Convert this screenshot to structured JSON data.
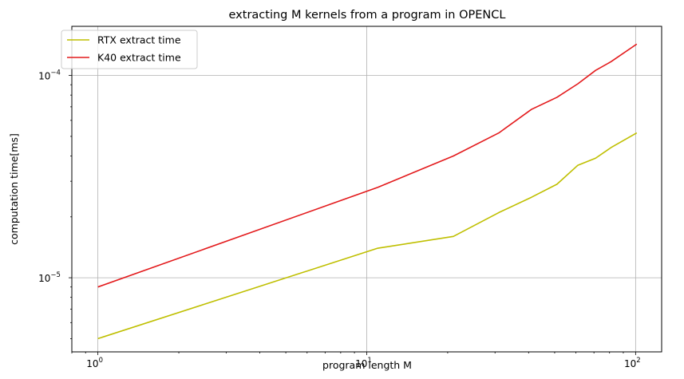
{
  "chart_data": {
    "type": "line",
    "title": "extracting M kernels from a program in OPENCL",
    "xlabel": "program length M",
    "ylabel": "computation time[ms]",
    "xscale": "log",
    "yscale": "log",
    "xlim": [
      0.8,
      125
    ],
    "ylim": [
      4.3e-06,
      0.000175
    ],
    "grid": true,
    "legend_position": "top-left",
    "x_ticks": [
      {
        "value": 1,
        "base": "10",
        "exp": "0"
      },
      {
        "value": 10,
        "base": "10",
        "exp": "1"
      },
      {
        "value": 100,
        "base": "10",
        "exp": "2"
      }
    ],
    "y_ticks": [
      {
        "value": 1e-05,
        "base": "10",
        "exp": "−5"
      },
      {
        "value": 0.0001,
        "base": "10",
        "exp": "−4"
      }
    ],
    "series": [
      {
        "name": "RTX extract time",
        "color": "#bfbf00",
        "x": [
          1,
          11,
          21,
          31,
          41,
          51,
          61,
          71,
          81,
          101
        ],
        "y": [
          5e-06,
          1.4e-05,
          1.6e-05,
          2.1e-05,
          2.5e-05,
          2.9e-05,
          3.6e-05,
          3.9e-05,
          4.4e-05,
          5.2e-05
        ]
      },
      {
        "name": "K40 extract time",
        "color": "#e31a1c",
        "x": [
          1,
          11,
          21,
          31,
          41,
          51,
          61,
          71,
          81,
          101
        ],
        "y": [
          9e-06,
          2.8e-05,
          4e-05,
          5.2e-05,
          6.8e-05,
          7.8e-05,
          9.1e-05,
          0.000106,
          0.000117,
          0.000143
        ]
      }
    ]
  }
}
